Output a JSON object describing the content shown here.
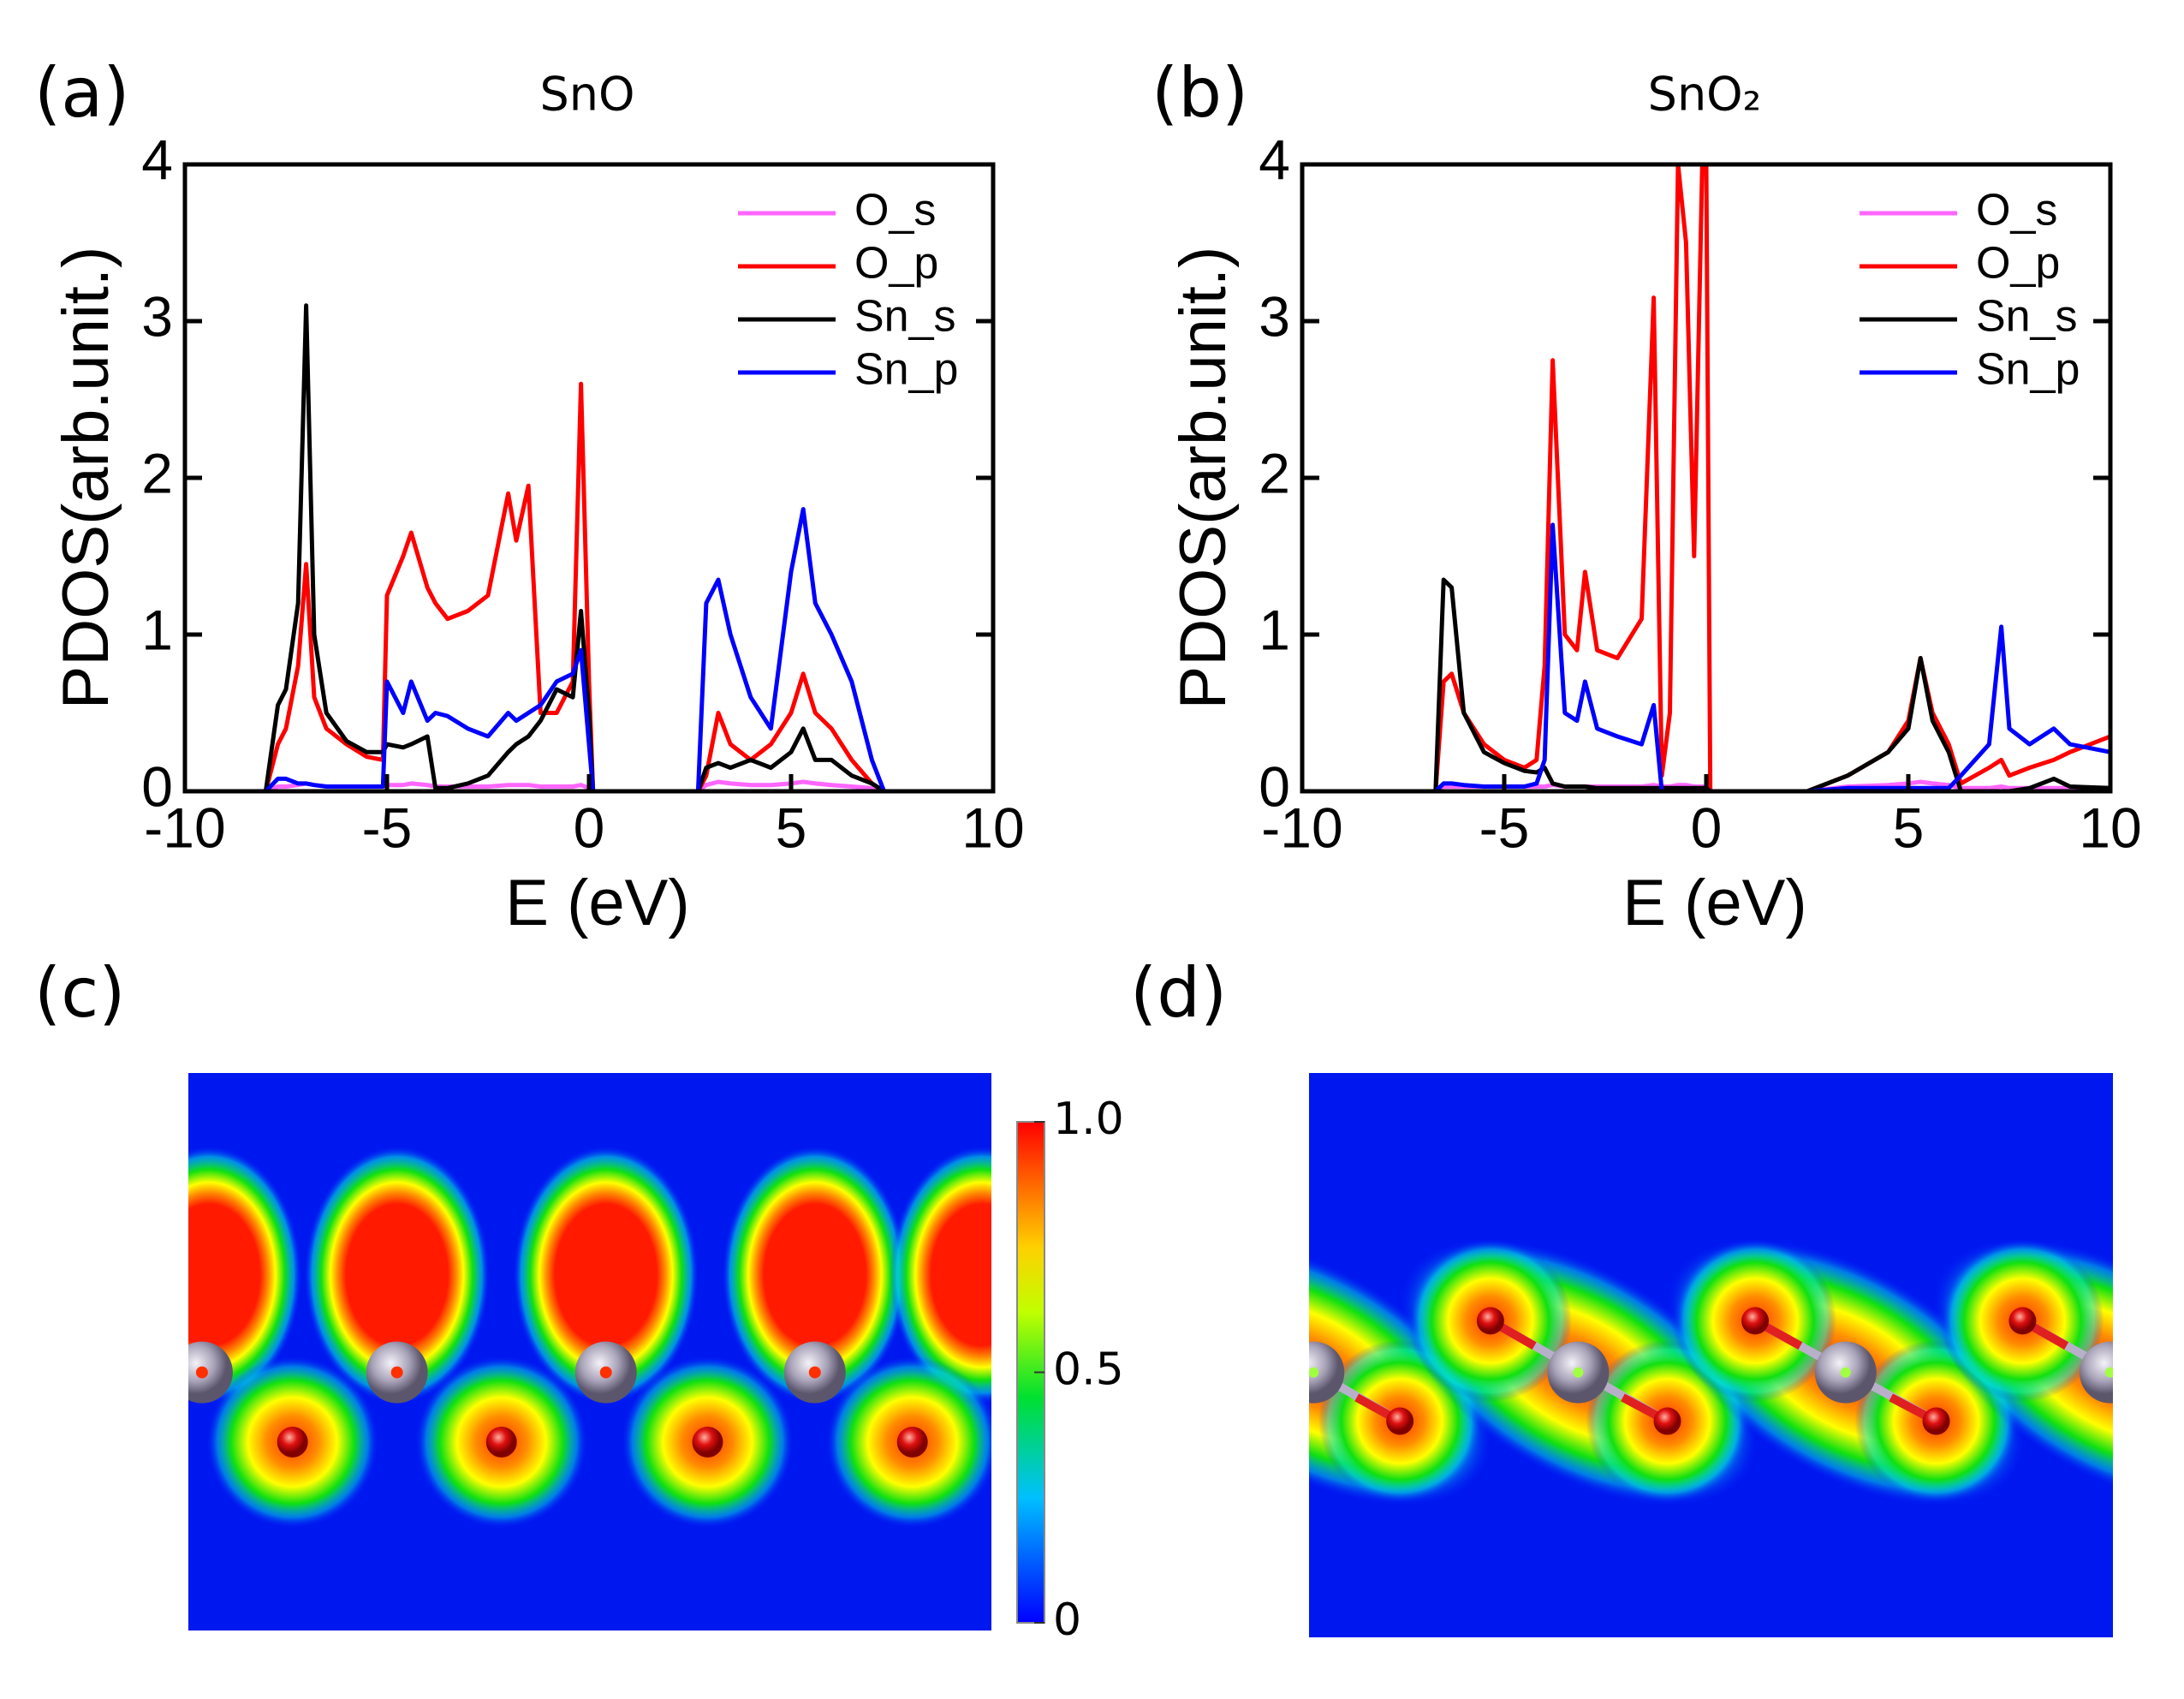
{
  "panels": [
    "(a)",
    "(b)",
    "(c)",
    "(d)"
  ],
  "colorbar": {
    "ticks": [
      0,
      0.5,
      {
        "value": 1,
        "label": "1.0"
      }
    ]
  },
  "chart_data": [
    {
      "type": "line",
      "title": "SnO",
      "x_label": "E (eV)",
      "y_label": "PDOS(arb.unit.)",
      "xlim": [
        -10,
        10
      ],
      "ylim": [
        0,
        4
      ],
      "xticks": [
        -10,
        -5,
        0,
        5,
        10
      ],
      "yticks": [
        0,
        1,
        2,
        3,
        4
      ],
      "x": [
        -10,
        -8,
        -7.7,
        -7.5,
        -7.2,
        -7.0,
        -6.8,
        -6.5,
        -6,
        -5.5,
        -5.1,
        -5.0,
        -4.6,
        -4.4,
        -4.0,
        -3.8,
        -3.5,
        -3,
        -2.5,
        -2,
        -1.8,
        -1.5,
        -1.2,
        -0.8,
        -0.4,
        -0.2,
        0,
        0.1,
        2.7,
        2.9,
        3.2,
        3.5,
        4,
        4.5,
        5,
        5.3,
        5.6,
        6,
        6.5,
        7,
        7.3,
        10
      ],
      "series": [
        {
          "name": "O_s",
          "color": "#ff66ff",
          "values": [
            0,
            0,
            0.03,
            0.03,
            0.04,
            0.05,
            0.04,
            0.03,
            0.03,
            0.03,
            0.03,
            0.04,
            0.04,
            0.05,
            0.04,
            0.03,
            0.03,
            0.03,
            0.03,
            0.04,
            0.04,
            0.04,
            0.03,
            0.03,
            0.03,
            0.04,
            0.02,
            0,
            0,
            0.04,
            0.06,
            0.05,
            0.04,
            0.04,
            0.05,
            0.06,
            0.05,
            0.04,
            0.03,
            0.02,
            0,
            0
          ]
        },
        {
          "name": "O_p",
          "color": "#ff0000",
          "values": [
            0,
            0,
            0.3,
            0.4,
            0.8,
            1.45,
            0.6,
            0.4,
            0.3,
            0.22,
            0.2,
            1.25,
            1.5,
            1.65,
            1.3,
            1.2,
            1.1,
            1.15,
            1.25,
            1.9,
            1.6,
            1.95,
            0.5,
            0.5,
            0.7,
            2.6,
            0.7,
            0,
            0,
            0.1,
            0.5,
            0.3,
            0.2,
            0.3,
            0.5,
            0.75,
            0.5,
            0.4,
            0.2,
            0.05,
            0,
            0
          ]
        },
        {
          "name": "Sn_s",
          "color": "#000000",
          "values": [
            0,
            0,
            0.55,
            0.65,
            1.2,
            3.1,
            1.0,
            0.5,
            0.32,
            0.25,
            0.25,
            0.3,
            0.28,
            0.3,
            0.35,
            0.02,
            0.02,
            0.05,
            0.1,
            0.25,
            0.3,
            0.35,
            0.45,
            0.65,
            0.6,
            1.15,
            0.5,
            0,
            0,
            0.15,
            0.18,
            0.15,
            0.2,
            0.15,
            0.25,
            0.4,
            0.2,
            0.2,
            0.1,
            0.05,
            0,
            0
          ]
        },
        {
          "name": "Sn_p",
          "color": "#0000ff",
          "values": [
            0,
            0,
            0.08,
            0.08,
            0.05,
            0.05,
            0.04,
            0.03,
            0.03,
            0.03,
            0.03,
            0.7,
            0.5,
            0.7,
            0.45,
            0.5,
            0.48,
            0.4,
            0.35,
            0.5,
            0.45,
            0.5,
            0.55,
            0.7,
            0.75,
            0.9,
            0.3,
            0,
            0,
            1.2,
            1.35,
            1.0,
            0.6,
            0.4,
            1.4,
            1.8,
            1.2,
            1.0,
            0.7,
            0.2,
            0,
            0
          ]
        }
      ]
    },
    {
      "type": "line",
      "title": "SnO₂",
      "x_label": "E (eV)",
      "y_label": "PDOS(arb.unit.)",
      "xlim": [
        -10,
        10
      ],
      "ylim": [
        0,
        4
      ],
      "xticks": [
        -10,
        -5,
        0,
        5,
        10
      ],
      "yticks": [
        0,
        1,
        2,
        3,
        4
      ],
      "x": [
        -10,
        -6.7,
        -6.5,
        -6.3,
        -6.0,
        -5.5,
        -5,
        -4.5,
        -4.2,
        -4.0,
        -3.8,
        -3.5,
        -3.2,
        -3.0,
        -2.7,
        -2.2,
        -1.6,
        -1.3,
        -1.1,
        -0.9,
        -0.7,
        -0.5,
        -0.3,
        -0.1,
        0,
        0.1,
        2.5,
        3.5,
        4.5,
        5.0,
        5.3,
        5.6,
        6.0,
        6.3,
        7.0,
        7.3,
        7.5,
        8,
        8.6,
        9,
        10
      ],
      "series": [
        {
          "name": "O_s",
          "color": "#ff66ff",
          "values": [
            0,
            0,
            0.03,
            0.03,
            0.03,
            0.03,
            0.03,
            0.03,
            0.03,
            0.03,
            0.04,
            0.03,
            0.03,
            0.03,
            0.03,
            0.03,
            0.03,
            0.04,
            0.03,
            0.03,
            0.04,
            0.04,
            0.03,
            0.03,
            0.03,
            0,
            0,
            0.03,
            0.04,
            0.05,
            0.06,
            0.05,
            0.04,
            0.02,
            0.02,
            0.03,
            0.02,
            0.02,
            0.02,
            0.02,
            0.02
          ]
        },
        {
          "name": "O_p",
          "color": "#ff0000",
          "values": [
            0,
            0,
            0.7,
            0.75,
            0.5,
            0.3,
            0.2,
            0.15,
            0.2,
            0.8,
            2.75,
            1.0,
            0.9,
            1.4,
            0.9,
            0.85,
            1.1,
            3.15,
            0.1,
            0.5,
            4.0,
            3.5,
            1.5,
            4.0,
            4.0,
            0,
            0,
            0.1,
            0.25,
            0.45,
            0.85,
            0.5,
            0.3,
            0.05,
            0.15,
            0.2,
            0.1,
            0.15,
            0.2,
            0.25,
            0.35
          ]
        },
        {
          "name": "Sn_s",
          "color": "#000000",
          "values": [
            0,
            0,
            1.35,
            1.3,
            0.5,
            0.25,
            0.18,
            0.13,
            0.12,
            0.15,
            0.05,
            0.03,
            0.03,
            0.03,
            0.02,
            0.02,
            0.02,
            0.02,
            0.02,
            0.02,
            0.02,
            0.02,
            0.02,
            0.02,
            0.02,
            0,
            0,
            0.1,
            0.25,
            0.4,
            0.85,
            0.45,
            0.25,
            0,
            0,
            0,
            0,
            0.02,
            0.08,
            0.03,
            0.02
          ]
        },
        {
          "name": "Sn_p",
          "color": "#0000ff",
          "values": [
            0,
            0,
            0.05,
            0.05,
            0.04,
            0.03,
            0.03,
            0.03,
            0.05,
            0.2,
            1.7,
            0.5,
            0.45,
            0.7,
            0.4,
            0.35,
            0.3,
            0.55,
            0,
            0,
            0,
            0,
            0,
            0,
            0,
            0,
            0,
            0.02,
            0.02,
            0.02,
            0.02,
            0.02,
            0.02,
            0.1,
            0.3,
            1.05,
            0.4,
            0.3,
            0.4,
            0.3,
            0.25
          ]
        }
      ]
    }
  ]
}
